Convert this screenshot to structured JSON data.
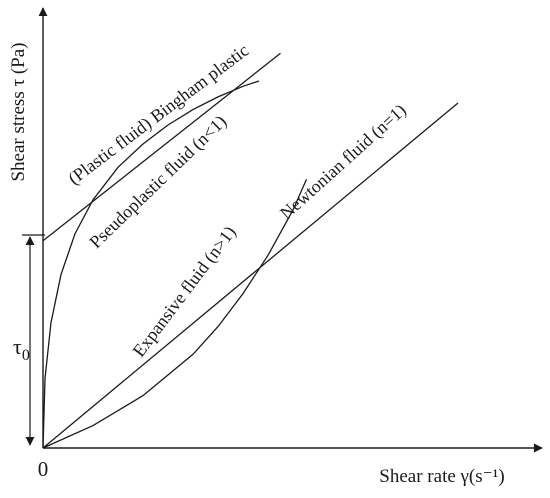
{
  "chart_data": {
    "type": "line",
    "title": "",
    "xlabel": "Shear rate γ(s⁻¹)",
    "ylabel": "Shear stress τ (Pa)",
    "origin_label": "0",
    "tau0": {
      "base": "τ",
      "sub": "0"
    },
    "axes": {
      "xlim": [
        0,
        10
      ],
      "ylim": [
        0,
        10
      ],
      "grid": false,
      "legend": "none"
    },
    "series": [
      {
        "name": "(Plastic fluid) Bingham plastic",
        "x": [
          0,
          4.75
        ],
        "y": [
          4.71,
          8.97
        ]
      },
      {
        "name": "Pseudoplastic fluid (n<1)",
        "x": [
          0,
          0.04,
          0.16,
          0.36,
          0.64,
          1.0,
          1.5,
          2.0,
          2.5,
          3.0,
          3.5,
          4.0,
          4.32
        ],
        "y": [
          0,
          1.58,
          2.85,
          3.94,
          4.87,
          5.64,
          6.38,
          6.91,
          7.34,
          7.69,
          7.98,
          8.22,
          8.34
        ]
      },
      {
        "name": "Expansive fluid (n>1)",
        "x": [
          0,
          1.0,
          2.0,
          3.0,
          3.5,
          4.0,
          4.5,
          5.0,
          5.27
        ],
        "y": [
          0,
          0.51,
          1.19,
          2.13,
          2.76,
          3.51,
          4.38,
          5.41,
          6.11
        ]
      },
      {
        "name": "Newtonian fluid (n=1)",
        "x": [
          0,
          8.3
        ],
        "y": [
          0,
          7.84
        ]
      }
    ],
    "annotations": [
      {
        "series": "(Plastic fluid) Bingham plastic",
        "text": "(Plastic fluid) Bingham plastic"
      },
      {
        "series": "Pseudoplastic fluid (n<1)",
        "text": "Pseudoplastic fluid (n<1)"
      },
      {
        "series": "Expansive fluid (n>1)",
        "text": "Expansive fluid (n>1)"
      },
      {
        "series": "Newtonian fluid (n=1)",
        "text": "Newtonian fluid (n=1)"
      }
    ],
    "colors": {
      "ink": "#1a1a1a",
      "background": "#ffffff"
    }
  }
}
